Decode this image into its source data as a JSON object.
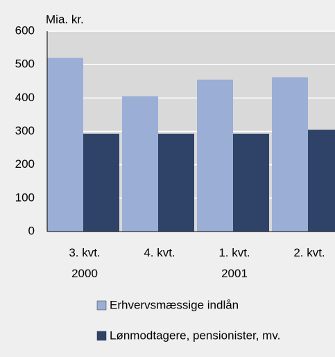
{
  "chart_data": {
    "type": "bar",
    "y_axis_label": "Mia. kr.",
    "categories": [
      "3. kvt.\n2000",
      "4. kvt.",
      "1. kvt.\n2001",
      "2. kvt."
    ],
    "series": [
      {
        "name": "Erhvervsmæssige indlån",
        "color": "#9aaed6",
        "values": [
          520,
          405,
          455,
          462
        ]
      },
      {
        "name": "Lønmodtagere, pensionister, mv.",
        "color": "#2f4369",
        "values": [
          293,
          293,
          293,
          305
        ]
      }
    ],
    "ylim": [
      0,
      600
    ],
    "yticks": [
      0,
      100,
      200,
      300,
      400,
      500,
      600
    ],
    "grid": true,
    "legend": "bottom"
  }
}
